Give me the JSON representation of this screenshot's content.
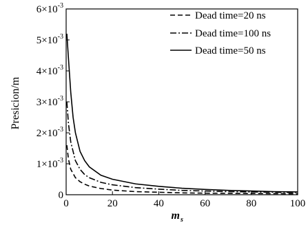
{
  "chart_data": {
    "type": "line",
    "title": "",
    "xlabel": "m",
    "xlabel_sub": "s",
    "ylabel": "Presicion/m",
    "xlim": [
      0,
      100
    ],
    "ylim": [
      0,
      0.006
    ],
    "grid": false,
    "legend_position": "top-right",
    "x_ticks": [
      {
        "value": 0,
        "label": "0"
      },
      {
        "value": 20,
        "label": "20"
      },
      {
        "value": 40,
        "label": "40"
      },
      {
        "value": 60,
        "label": "60"
      },
      {
        "value": 80,
        "label": "80"
      },
      {
        "value": 100,
        "label": "100"
      }
    ],
    "y_ticks": [
      {
        "value": 0,
        "mantissa": "0",
        "exponent": ""
      },
      {
        "value": 0.001,
        "mantissa": "1×10",
        "exponent": "-3"
      },
      {
        "value": 0.002,
        "mantissa": "2×10",
        "exponent": "-3"
      },
      {
        "value": 0.003,
        "mantissa": "3×10",
        "exponent": "-3"
      },
      {
        "value": 0.004,
        "mantissa": "4×10",
        "exponent": "-3"
      },
      {
        "value": 0.005,
        "mantissa": "5×10",
        "exponent": "-3"
      },
      {
        "value": 0.006,
        "mantissa": "6×10",
        "exponent": "-3"
      }
    ],
    "series": [
      {
        "name": "Dead time=20 ns",
        "style": "dashed",
        "color": "#000000",
        "x": [
          0.3,
          1,
          2,
          4,
          6,
          8,
          10,
          15,
          20,
          30,
          40,
          50,
          60,
          70,
          80,
          90,
          100
        ],
        "y": [
          0.0016,
          0.00115,
          0.00082,
          0.00055,
          0.00042,
          0.00034,
          0.00028,
          0.0002,
          0.00015,
          0.0001,
          8e-05,
          6e-05,
          5e-05,
          4.5e-05,
          4e-05,
          3.5e-05,
          3e-05
        ]
      },
      {
        "name": "Dead time=100 ns",
        "style": "dashdot",
        "color": "#000000",
        "x": [
          0.3,
          1,
          2,
          4,
          6,
          8,
          10,
          15,
          20,
          30,
          40,
          50,
          60,
          70,
          80,
          90,
          100
        ],
        "y": [
          0.003,
          0.0023,
          0.0017,
          0.0011,
          0.00082,
          0.00065,
          0.00055,
          0.0004,
          0.00032,
          0.00023,
          0.00018,
          0.00014,
          0.00012,
          0.0001,
          9e-05,
          8e-05,
          7e-05
        ]
      },
      {
        "name": "Dead time=50 ns",
        "style": "solid",
        "color": "#000000",
        "x": [
          0.3,
          1,
          2,
          3,
          4,
          6,
          8,
          10,
          15,
          20,
          30,
          40,
          50,
          60,
          70,
          80,
          90,
          100
        ],
        "y": [
          0.0052,
          0.0044,
          0.0033,
          0.0025,
          0.002,
          0.0014,
          0.0011,
          0.0009,
          0.00063,
          0.0005,
          0.00035,
          0.00027,
          0.00021,
          0.00017,
          0.00014,
          0.00012,
          0.0001,
          9e-05
        ]
      }
    ]
  }
}
